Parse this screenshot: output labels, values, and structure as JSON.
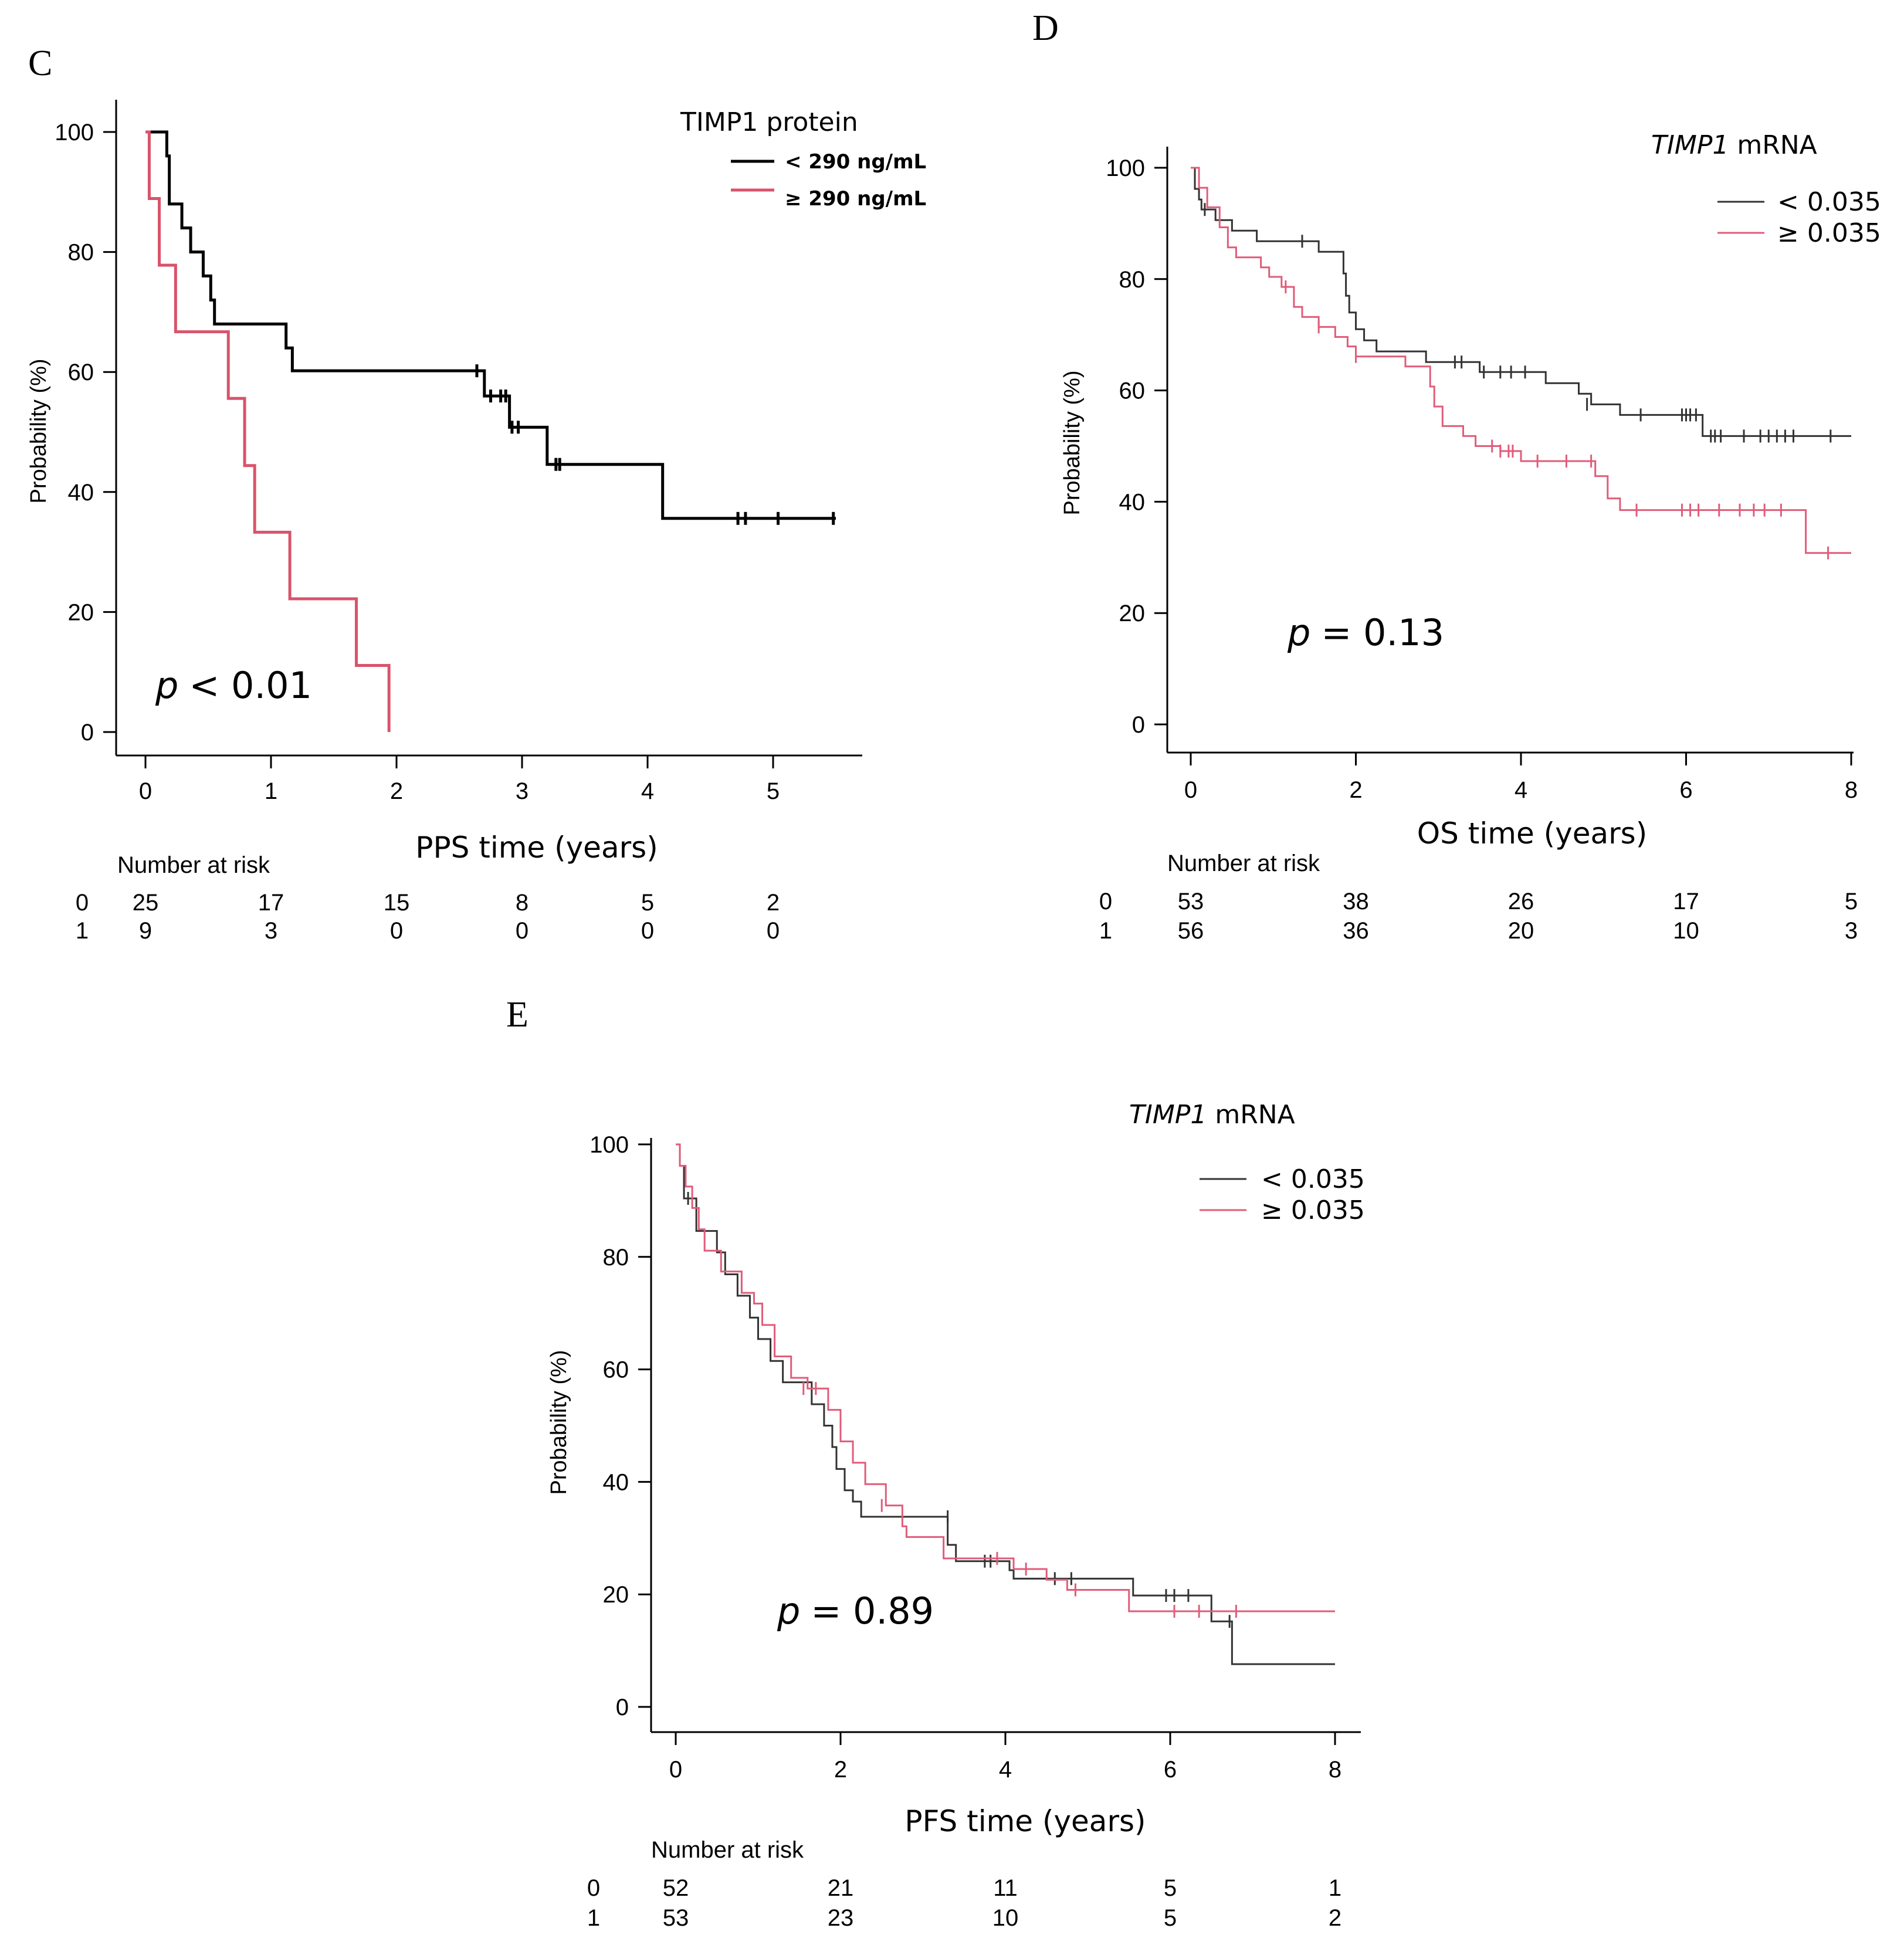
{
  "panels": [
    {
      "letter": "C",
      "legend_title": "TIMP1 protein",
      "legend_title_italic": "",
      "legend_title_rest": "TIMP1 protein",
      "xlabel": "PPS time (years)",
      "ylabel": "Probability (%)",
      "p_symbol": "p",
      "p_text": "< 0.01",
      "risk_title": "Number at risk",
      "risk_rows": [
        {
          "group": "0",
          "values": [
            "25",
            "17",
            "15",
            "8",
            "5",
            "2"
          ]
        },
        {
          "group": "1",
          "values": [
            "9",
            "3",
            "0",
            "0",
            "0",
            "0"
          ]
        }
      ]
    },
    {
      "letter": "D",
      "legend_title_italic": "TIMP1",
      "legend_title_rest": " mRNA",
      "xlabel": "OS time (years)",
      "ylabel": "Probability (%)",
      "p_symbol": "p",
      "p_text": "= 0.13",
      "risk_title": "Number at risk",
      "risk_rows": [
        {
          "group": "0",
          "values": [
            "53",
            "38",
            "26",
            "17",
            "5"
          ]
        },
        {
          "group": "1",
          "values": [
            "56",
            "36",
            "20",
            "10",
            "3"
          ]
        }
      ]
    },
    {
      "letter": "E",
      "legend_title_italic": "TIMP1",
      "legend_title_rest": " mRNA",
      "xlabel": "PFS time (years)",
      "ylabel": "Probability (%)",
      "p_symbol": "p",
      "p_text": "= 0.89",
      "risk_title": "Number at risk",
      "risk_rows": [
        {
          "group": "0",
          "values": [
            "52",
            "21",
            "11",
            "5",
            "1"
          ]
        },
        {
          "group": "1",
          "values": [
            "53",
            "23",
            "10",
            "5",
            "2"
          ]
        }
      ]
    }
  ],
  "chart_data": [
    {
      "type": "line",
      "panel": "C",
      "xlabel": "PPS time (years)",
      "ylabel": "Probability (%)",
      "xlim": [
        0,
        5.5
      ],
      "ylim": [
        0,
        100
      ],
      "xticks": [
        0,
        1,
        2,
        3,
        4,
        5
      ],
      "yticks": [
        0,
        20,
        40,
        60,
        80,
        100
      ],
      "series": [
        {
          "name": "< 290 ng/mL",
          "color": "#000000",
          "steps": [
            [
              0,
              100
            ],
            [
              0.17,
              96
            ],
            [
              0.19,
              88
            ],
            [
              0.29,
              84
            ],
            [
              0.36,
              80
            ],
            [
              0.46,
              76
            ],
            [
              0.52,
              72
            ],
            [
              0.55,
              68
            ],
            [
              1.12,
              64
            ],
            [
              1.17,
              60.2
            ],
            [
              2.7,
              56
            ],
            [
              2.9,
              50.8
            ],
            [
              3.2,
              44.6
            ],
            [
              4.12,
              35.6
            ],
            [
              5.5,
              35.6
            ]
          ],
          "censors": [
            [
              2.64,
              60.2
            ],
            [
              2.75,
              56
            ],
            [
              2.83,
              56
            ],
            [
              2.87,
              56
            ],
            [
              2.92,
              50.8
            ],
            [
              2.97,
              50.8
            ],
            [
              3.27,
              44.6
            ],
            [
              3.3,
              44.6
            ],
            [
              4.72,
              35.6
            ],
            [
              4.78,
              35.6
            ],
            [
              5.04,
              35.6
            ],
            [
              5.48,
              35.6
            ]
          ]
        },
        {
          "name": "≥ 290 ng/mL",
          "color": "#d9536b",
          "steps": [
            [
              0,
              100
            ],
            [
              0.03,
              88.9
            ],
            [
              0.11,
              77.8
            ],
            [
              0.24,
              66.7
            ],
            [
              0.66,
              55.6
            ],
            [
              0.79,
              44.4
            ],
            [
              0.87,
              33.3
            ],
            [
              1.15,
              22.2
            ],
            [
              1.68,
              11.1
            ],
            [
              1.94,
              0
            ]
          ],
          "censors": []
        }
      ]
    },
    {
      "type": "line",
      "panel": "D",
      "xlabel": "OS time (years)",
      "ylabel": "Probability (%)",
      "xlim": [
        0,
        8
      ],
      "ylim": [
        0,
        100
      ],
      "xticks": [
        0,
        2,
        4,
        6,
        8
      ],
      "yticks": [
        0,
        20,
        40,
        60,
        80,
        100
      ],
      "series": [
        {
          "name": "< 0.035",
          "color": "#333333",
          "steps": [
            [
              0,
              100
            ],
            [
              0.05,
              96.2
            ],
            [
              0.1,
              94.3
            ],
            [
              0.13,
              92.5
            ],
            [
              0.3,
              90.6
            ],
            [
              0.5,
              88.7
            ],
            [
              0.8,
              86.8
            ],
            [
              1.55,
              84.9
            ],
            [
              1.85,
              81
            ],
            [
              1.88,
              77
            ],
            [
              1.92,
              74
            ],
            [
              2.0,
              71
            ],
            [
              2.1,
              69
            ],
            [
              2.25,
              67
            ],
            [
              2.85,
              65.1
            ],
            [
              3.5,
              63.3
            ],
            [
              4.3,
              61.3
            ],
            [
              4.7,
              59.4
            ],
            [
              4.85,
              57.5
            ],
            [
              5.2,
              55.6
            ],
            [
              6.2,
              51.8
            ],
            [
              8,
              51.8
            ]
          ],
          "censors": [
            [
              0.17,
              92.5
            ],
            [
              1.35,
              86.8
            ],
            [
              3.2,
              65.1
            ],
            [
              3.28,
              65.1
            ],
            [
              3.55,
              63.3
            ],
            [
              3.75,
              63.3
            ],
            [
              3.88,
              63.3
            ],
            [
              4.05,
              63.3
            ],
            [
              4.8,
              57.5
            ],
            [
              5.45,
              55.6
            ],
            [
              5.95,
              55.6
            ],
            [
              6.0,
              55.6
            ],
            [
              6.05,
              55.6
            ],
            [
              6.12,
              55.6
            ],
            [
              6.3,
              51.8
            ],
            [
              6.35,
              51.8
            ],
            [
              6.42,
              51.8
            ],
            [
              6.7,
              51.8
            ],
            [
              6.9,
              51.8
            ],
            [
              7.0,
              51.8
            ],
            [
              7.1,
              51.8
            ],
            [
              7.2,
              51.8
            ],
            [
              7.3,
              51.8
            ],
            [
              7.75,
              51.8
            ]
          ]
        },
        {
          "name": "≥ 0.035",
          "color": "#e05c7a",
          "steps": [
            [
              0,
              100
            ],
            [
              0.1,
              96.4
            ],
            [
              0.2,
              92.9
            ],
            [
              0.35,
              89.3
            ],
            [
              0.45,
              85.7
            ],
            [
              0.55,
              83.9
            ],
            [
              0.85,
              82.1
            ],
            [
              0.95,
              80.4
            ],
            [
              1.1,
              78.6
            ],
            [
              1.25,
              75
            ],
            [
              1.35,
              73.2
            ],
            [
              1.55,
              71.4
            ],
            [
              1.75,
              69.6
            ],
            [
              1.9,
              67.9
            ],
            [
              2.0,
              66.1
            ],
            [
              2.6,
              64.3
            ],
            [
              2.9,
              60.7
            ],
            [
              2.95,
              57.1
            ],
            [
              3.05,
              53.6
            ],
            [
              3.3,
              51.8
            ],
            [
              3.45,
              50
            ],
            [
              3.75,
              49.1
            ],
            [
              4.0,
              47.3
            ],
            [
              4.9,
              44.6
            ],
            [
              5.05,
              40.6
            ],
            [
              5.2,
              38.5
            ],
            [
              7.45,
              30.8
            ],
            [
              8,
              30.8
            ]
          ],
          "censors": [
            [
              1.15,
              78.6
            ],
            [
              1.55,
              71.4
            ],
            [
              2.0,
              66.1
            ],
            [
              3.65,
              50
            ],
            [
              3.75,
              49.1
            ],
            [
              3.85,
              49.1
            ],
            [
              3.9,
              49.1
            ],
            [
              4.2,
              47.3
            ],
            [
              4.55,
              47.3
            ],
            [
              4.85,
              47.3
            ],
            [
              5.4,
              38.5
            ],
            [
              5.95,
              38.5
            ],
            [
              6.05,
              38.5
            ],
            [
              6.15,
              38.5
            ],
            [
              6.4,
              38.5
            ],
            [
              6.65,
              38.5
            ],
            [
              6.82,
              38.5
            ],
            [
              6.95,
              38.5
            ],
            [
              7.15,
              38.5
            ],
            [
              7.72,
              30.8
            ]
          ]
        }
      ]
    },
    {
      "type": "line",
      "panel": "E",
      "xlabel": "PFS time (years)",
      "ylabel": "Probability (%)",
      "xlim": [
        0,
        8
      ],
      "ylim": [
        0,
        100
      ],
      "xticks": [
        0,
        2,
        4,
        6,
        8
      ],
      "yticks": [
        0,
        20,
        40,
        60,
        80,
        100
      ],
      "series": [
        {
          "name": "< 0.035",
          "color": "#333333",
          "steps": [
            [
              0,
              100
            ],
            [
              0.05,
              96.2
            ],
            [
              0.1,
              90.4
            ],
            [
              0.25,
              84.6
            ],
            [
              0.5,
              80.8
            ],
            [
              0.6,
              76.9
            ],
            [
              0.75,
              73.1
            ],
            [
              0.9,
              69.2
            ],
            [
              1.0,
              65.4
            ],
            [
              1.15,
              61.5
            ],
            [
              1.3,
              57.7
            ],
            [
              1.65,
              53.8
            ],
            [
              1.8,
              50
            ],
            [
              1.9,
              46.2
            ],
            [
              1.95,
              42.3
            ],
            [
              2.05,
              38.5
            ],
            [
              2.15,
              36.5
            ],
            [
              2.25,
              33.8
            ],
            [
              3.3,
              28.8
            ],
            [
              3.4,
              25.9
            ],
            [
              4.05,
              24.3
            ],
            [
              4.1,
              22.8
            ],
            [
              5.55,
              19.8
            ],
            [
              6.5,
              15.2
            ],
            [
              6.75,
              7.6
            ],
            [
              8,
              7.6
            ]
          ],
          "censors": [
            [
              0.15,
              90.4
            ],
            [
              3.3,
              33.8
            ],
            [
              3.75,
              25.9
            ],
            [
              3.82,
              25.9
            ],
            [
              4.6,
              22.8
            ],
            [
              4.8,
              22.8
            ],
            [
              5.95,
              19.8
            ],
            [
              6.05,
              19.8
            ],
            [
              6.22,
              19.8
            ],
            [
              6.72,
              15.2
            ]
          ]
        },
        {
          "name": "≥ 0.035",
          "color": "#e05c7a",
          "steps": [
            [
              0,
              100
            ],
            [
              0.05,
              96.2
            ],
            [
              0.12,
              92.5
            ],
            [
              0.2,
              88.7
            ],
            [
              0.28,
              84.9
            ],
            [
              0.35,
              81.1
            ],
            [
              0.55,
              77.4
            ],
            [
              0.8,
              73.6
            ],
            [
              0.95,
              71.7
            ],
            [
              1.05,
              67.9
            ],
            [
              1.2,
              62.3
            ],
            [
              1.4,
              58.5
            ],
            [
              1.6,
              56.6
            ],
            [
              1.85,
              52.8
            ],
            [
              2.0,
              47.2
            ],
            [
              2.15,
              43.4
            ],
            [
              2.3,
              39.6
            ],
            [
              2.55,
              35.8
            ],
            [
              2.75,
              32.1
            ],
            [
              2.8,
              30.2
            ],
            [
              3.25,
              26.4
            ],
            [
              3.8,
              26.4
            ],
            [
              4.1,
              24.5
            ],
            [
              4.5,
              22.6
            ],
            [
              4.75,
              20.8
            ],
            [
              5.5,
              17
            ],
            [
              8,
              17
            ]
          ],
          "censors": [
            [
              1.55,
              56.6
            ],
            [
              1.7,
              56.6
            ],
            [
              2.5,
              35.8
            ],
            [
              3.9,
              26.4
            ],
            [
              4.25,
              24.5
            ],
            [
              4.85,
              20.8
            ],
            [
              6.05,
              17
            ],
            [
              6.35,
              17
            ],
            [
              6.8,
              17
            ]
          ]
        }
      ]
    }
  ]
}
